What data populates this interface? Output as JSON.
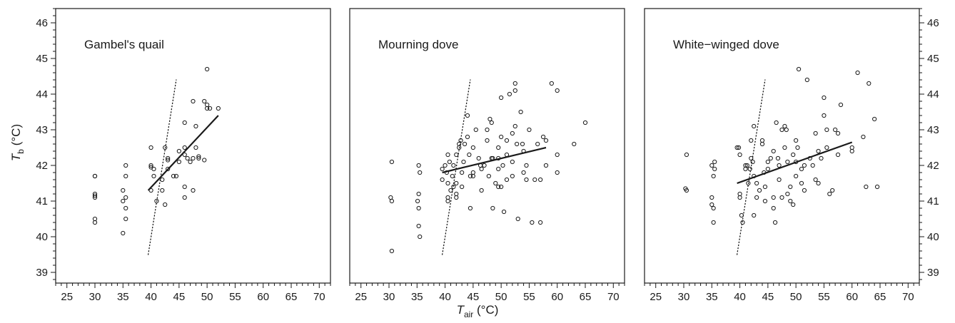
{
  "chart_data": [
    {
      "type": "scatter",
      "title": "Gambel's quail",
      "xlim": [
        23,
        72
      ],
      "ylim": [
        38.7,
        46.4
      ],
      "xticks": [
        25,
        30,
        35,
        40,
        45,
        50,
        55,
        60,
        65,
        70
      ],
      "yticks": [
        39,
        40,
        41,
        42,
        43,
        44,
        45,
        46
      ],
      "points": [
        [
          30,
          41.7
        ],
        [
          30,
          41.7
        ],
        [
          30,
          41.2
        ],
        [
          30,
          41.15
        ],
        [
          30,
          41.1
        ],
        [
          30,
          40.5
        ],
        [
          30,
          40.4
        ],
        [
          35,
          41.3
        ],
        [
          35,
          41.0
        ],
        [
          35,
          40.1
        ],
        [
          35.5,
          42.0
        ],
        [
          35.5,
          41.7
        ],
        [
          35.5,
          41.1
        ],
        [
          35.5,
          40.8
        ],
        [
          35.5,
          40.5
        ],
        [
          40,
          42.5
        ],
        [
          40,
          42.0
        ],
        [
          40,
          41.95
        ],
        [
          40.5,
          41.9
        ],
        [
          40.5,
          41.7
        ],
        [
          40,
          41.3
        ],
        [
          41,
          41.0
        ],
        [
          42,
          41.6
        ],
        [
          42,
          41.3
        ],
        [
          42.5,
          40.9
        ],
        [
          42.5,
          42.5
        ],
        [
          43,
          42.2
        ],
        [
          43,
          42.15
        ],
        [
          43,
          41.9
        ],
        [
          44,
          41.7
        ],
        [
          44.5,
          41.7
        ],
        [
          45,
          42.1
        ],
        [
          45,
          42.4
        ],
        [
          46,
          43.2
        ],
        [
          46,
          42.5
        ],
        [
          46,
          42.3
        ],
        [
          46.5,
          42.2
        ],
        [
          46,
          41.4
        ],
        [
          46,
          41.1
        ],
        [
          47,
          42.1
        ],
        [
          47.5,
          41.3
        ],
        [
          47.5,
          43.8
        ],
        [
          47.5,
          42.2
        ],
        [
          48,
          42.5
        ],
        [
          48,
          43.1
        ],
        [
          48.5,
          42.25
        ],
        [
          48.5,
          42.2
        ],
        [
          49.5,
          43.8
        ],
        [
          49.5,
          42.15
        ],
        [
          50,
          43.7
        ],
        [
          50,
          43.6
        ],
        [
          50.5,
          43.6
        ],
        [
          50,
          44.7
        ],
        [
          52,
          43.6
        ]
      ],
      "fit_line": [
        [
          39.5,
          41.3
        ],
        [
          52,
          43.4
        ]
      ],
      "reference_line": [
        [
          39.5,
          39.5
        ],
        [
          44.5,
          44.4
        ]
      ],
      "grid": false
    },
    {
      "type": "scatter",
      "title": "Mourning dove",
      "xlim": [
        23,
        72
      ],
      "ylim": [
        38.7,
        46.4
      ],
      "xticks": [
        25,
        30,
        35,
        40,
        45,
        50,
        55,
        60,
        65,
        70
      ],
      "yticks": [
        39,
        40,
        41,
        42,
        43,
        44,
        45,
        46
      ],
      "points": [
        [
          30.5,
          42.1
        ],
        [
          30.3,
          41.1
        ],
        [
          30.5,
          41.0
        ],
        [
          30.5,
          39.6
        ],
        [
          35.3,
          42.0
        ],
        [
          35.5,
          41.8
        ],
        [
          35.3,
          41.2
        ],
        [
          35.1,
          41.0
        ],
        [
          35.3,
          40.8
        ],
        [
          35.3,
          40.3
        ],
        [
          35.5,
          40.0
        ],
        [
          39.5,
          41.6
        ],
        [
          39.5,
          41.9
        ],
        [
          40,
          42.0
        ],
        [
          40.3,
          41.8
        ],
        [
          40.5,
          42.3
        ],
        [
          40.8,
          42.1
        ],
        [
          40.5,
          41.5
        ],
        [
          40.5,
          41.1
        ],
        [
          40.5,
          41.0
        ],
        [
          41,
          41.3
        ],
        [
          41.3,
          41.7
        ],
        [
          41.5,
          41.4
        ],
        [
          41.5,
          42.0
        ],
        [
          42,
          42.3
        ],
        [
          42,
          41.5
        ],
        [
          42,
          41.2
        ],
        [
          42,
          41.1
        ],
        [
          42.5,
          42.6
        ],
        [
          42.5,
          42.5
        ],
        [
          42.8,
          42.7
        ],
        [
          43,
          41.4
        ],
        [
          43,
          41.8
        ],
        [
          43.3,
          42.1
        ],
        [
          43.5,
          42.6
        ],
        [
          44,
          43.4
        ],
        [
          44,
          42.8
        ],
        [
          44.3,
          42.3
        ],
        [
          44.5,
          41.7
        ],
        [
          44.5,
          40.8
        ],
        [
          45,
          42.5
        ],
        [
          45,
          41.8
        ],
        [
          45,
          41.7
        ],
        [
          45.5,
          43.0
        ],
        [
          46,
          42.2
        ],
        [
          46.3,
          42.0
        ],
        [
          46.5,
          41.9
        ],
        [
          46.5,
          41.3
        ],
        [
          47,
          42.0
        ],
        [
          47.5,
          43.0
        ],
        [
          47.5,
          42.7
        ],
        [
          47.8,
          41.7
        ],
        [
          48,
          43.3
        ],
        [
          48.3,
          43.2
        ],
        [
          48.3,
          42.2
        ],
        [
          48.5,
          42.2
        ],
        [
          48.5,
          40.8
        ],
        [
          49,
          41.5
        ],
        [
          49.5,
          42.5
        ],
        [
          49.5,
          42.2
        ],
        [
          49.5,
          41.9
        ],
        [
          49.5,
          41.4
        ],
        [
          50,
          43.9
        ],
        [
          50,
          42.8
        ],
        [
          50,
          41.4
        ],
        [
          50.3,
          42.0
        ],
        [
          50.5,
          40.7
        ],
        [
          51,
          42.7
        ],
        [
          51,
          42.3
        ],
        [
          51,
          41.6
        ],
        [
          51.5,
          44.0
        ],
        [
          52,
          42.9
        ],
        [
          52,
          42.1
        ],
        [
          52,
          41.7
        ],
        [
          52.5,
          44.3
        ],
        [
          52.5,
          44.1
        ],
        [
          52.5,
          43.1
        ],
        [
          52.8,
          42.6
        ],
        [
          53,
          40.5
        ],
        [
          53.5,
          43.5
        ],
        [
          53.8,
          42.6
        ],
        [
          54,
          42.4
        ],
        [
          54,
          41.8
        ],
        [
          54.5,
          42.0
        ],
        [
          54.5,
          41.6
        ],
        [
          55,
          43.0
        ],
        [
          55.5,
          40.4
        ],
        [
          56,
          41.6
        ],
        [
          56.5,
          42.6
        ],
        [
          57,
          41.6
        ],
        [
          57,
          40.4
        ],
        [
          57.5,
          42.8
        ],
        [
          58,
          42.7
        ],
        [
          58,
          42.0
        ],
        [
          59,
          44.3
        ],
        [
          60,
          44.1
        ],
        [
          60,
          42.3
        ],
        [
          60,
          41.8
        ],
        [
          63,
          42.6
        ],
        [
          65,
          43.2
        ]
      ],
      "fit_line": [
        [
          39.5,
          41.8
        ],
        [
          58,
          42.5
        ]
      ],
      "reference_line": [
        [
          39.5,
          39.5
        ],
        [
          44.5,
          44.4
        ]
      ],
      "grid": false
    },
    {
      "type": "scatter",
      "title": "White−winged dove",
      "xlim": [
        23,
        72
      ],
      "ylim": [
        38.7,
        46.4
      ],
      "xticks": [
        25,
        30,
        35,
        40,
        45,
        50,
        55,
        60,
        65,
        70
      ],
      "yticks": [
        39,
        40,
        41,
        42,
        43,
        44,
        45,
        46
      ],
      "points": [
        [
          30.5,
          42.3
        ],
        [
          30.3,
          41.35
        ],
        [
          30.5,
          41.3
        ],
        [
          35,
          42.0
        ],
        [
          35.5,
          42.1
        ],
        [
          35.5,
          41.9
        ],
        [
          35.3,
          41.7
        ],
        [
          35,
          41.1
        ],
        [
          35,
          40.9
        ],
        [
          35.3,
          40.8
        ],
        [
          35.3,
          40.4
        ],
        [
          39.5,
          42.5
        ],
        [
          39.8,
          42.5
        ],
        [
          40,
          42.3
        ],
        [
          40,
          41.2
        ],
        [
          40,
          41.1
        ],
        [
          40.3,
          40.6
        ],
        [
          40.5,
          40.4
        ],
        [
          41,
          42.0
        ],
        [
          41,
          41.9
        ],
        [
          41.3,
          42.0
        ],
        [
          41.5,
          41.5
        ],
        [
          41.8,
          41.9
        ],
        [
          42,
          42.7
        ],
        [
          42,
          42.2
        ],
        [
          42.3,
          42.1
        ],
        [
          42.5,
          43.1
        ],
        [
          42.5,
          41.7
        ],
        [
          42.5,
          40.6
        ],
        [
          43,
          41.5
        ],
        [
          43,
          41.1
        ],
        [
          43.5,
          41.3
        ],
        [
          44,
          42.7
        ],
        [
          44,
          42.6
        ],
        [
          44.3,
          41.8
        ],
        [
          44.5,
          41.4
        ],
        [
          44.5,
          41.0
        ],
        [
          45,
          42.1
        ],
        [
          45,
          41.9
        ],
        [
          45.5,
          42.2
        ],
        [
          46,
          42.4
        ],
        [
          46,
          41.1
        ],
        [
          46,
          40.8
        ],
        [
          46.3,
          40.4
        ],
        [
          46.5,
          43.2
        ],
        [
          46.8,
          42.2
        ],
        [
          47,
          42.0
        ],
        [
          47,
          41.6
        ],
        [
          47.5,
          43.0
        ],
        [
          47.5,
          41.1
        ],
        [
          48,
          42.5
        ],
        [
          48,
          43.1
        ],
        [
          48.3,
          43.0
        ],
        [
          48.5,
          42.1
        ],
        [
          48.5,
          41.2
        ],
        [
          49,
          41.4
        ],
        [
          49,
          41.0
        ],
        [
          49.5,
          42.3
        ],
        [
          49.5,
          40.9
        ],
        [
          50,
          42.7
        ],
        [
          50,
          42.1
        ],
        [
          50,
          41.7
        ],
        [
          50.3,
          42.5
        ],
        [
          50.5,
          44.7
        ],
        [
          51,
          41.9
        ],
        [
          51,
          41.5
        ],
        [
          51.5,
          42.0
        ],
        [
          51.5,
          41.3
        ],
        [
          52,
          44.4
        ],
        [
          52.5,
          42.2
        ],
        [
          53,
          42.0
        ],
        [
          53.5,
          41.6
        ],
        [
          53.5,
          42.9
        ],
        [
          54,
          42.4
        ],
        [
          54,
          41.5
        ],
        [
          54.5,
          42.2
        ],
        [
          55,
          43.9
        ],
        [
          55,
          43.4
        ],
        [
          55.5,
          43.0
        ],
        [
          55.5,
          42.5
        ],
        [
          56,
          41.2
        ],
        [
          56.5,
          41.3
        ],
        [
          57,
          43.0
        ],
        [
          57.5,
          42.9
        ],
        [
          57.5,
          42.3
        ],
        [
          58,
          43.7
        ],
        [
          60,
          42.5
        ],
        [
          60,
          42.4
        ],
        [
          61,
          44.6
        ],
        [
          62,
          42.8
        ],
        [
          62.5,
          41.4
        ],
        [
          63,
          44.3
        ],
        [
          64,
          43.3
        ],
        [
          64.5,
          41.4
        ]
      ],
      "fit_line": [
        [
          39.5,
          41.5
        ],
        [
          60,
          42.65
        ]
      ],
      "reference_line": [
        [
          39.5,
          39.5
        ],
        [
          44.5,
          44.4
        ]
      ],
      "grid": false
    }
  ],
  "axes": {
    "ylabel_main": "T",
    "ylabel_sub": "b",
    "ylabel_unit": " (°C)",
    "xlabel_main": "T",
    "xlabel_sub": "air",
    "xlabel_unit": " (°C)"
  },
  "colors": {
    "ink": "#1a1a1a",
    "background": "#ffffff"
  }
}
